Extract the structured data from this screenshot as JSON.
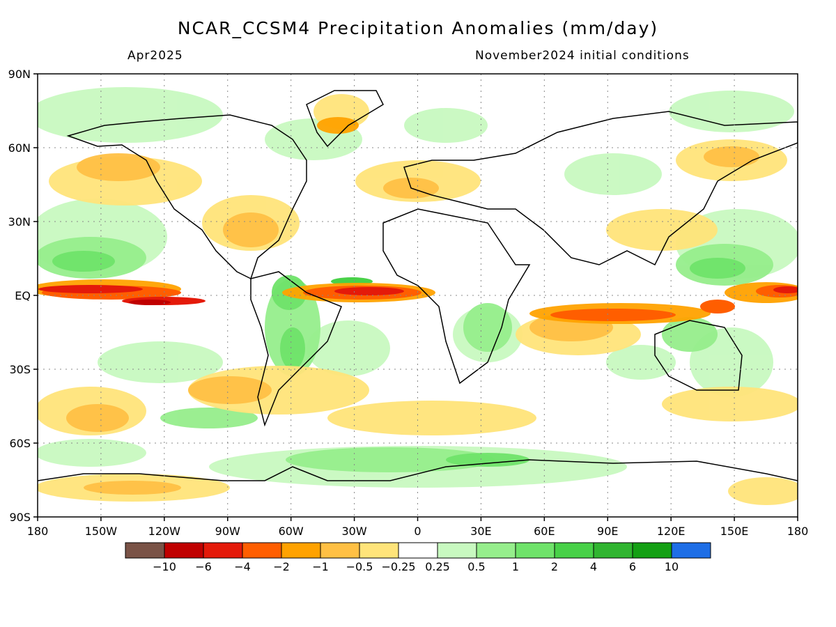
{
  "title": "NCAR_CCSM4 Precipitation Anomalies (mm/day)",
  "subtitle_left": "Apr2025",
  "subtitle_right": "November2024 initial conditions",
  "axes": {
    "lat_labels": [
      "90N",
      "60N",
      "30N",
      "EQ",
      "30S",
      "60S",
      "90S"
    ],
    "lon_labels": [
      "180",
      "150W",
      "120W",
      "90W",
      "60W",
      "30W",
      "0",
      "30E",
      "60E",
      "90E",
      "120E",
      "150E",
      "180"
    ]
  },
  "colorbar": {
    "colors": [
      "#7a5347",
      "#c00000",
      "#e41a0a",
      "#ff5e00",
      "#ffa200",
      "#ffc044",
      "#ffe47a",
      "#ffffff",
      "#c8f9c0",
      "#96ee8c",
      "#6fe36a",
      "#48d148",
      "#30b530",
      "#14a014",
      "#1e6ee6"
    ],
    "labels": [
      "-10",
      "-6",
      "-4",
      "-2",
      "-1",
      "-0.5",
      "-0.25",
      "0.25",
      "0.5",
      "1",
      "2",
      "4",
      "6",
      "10"
    ]
  }
}
